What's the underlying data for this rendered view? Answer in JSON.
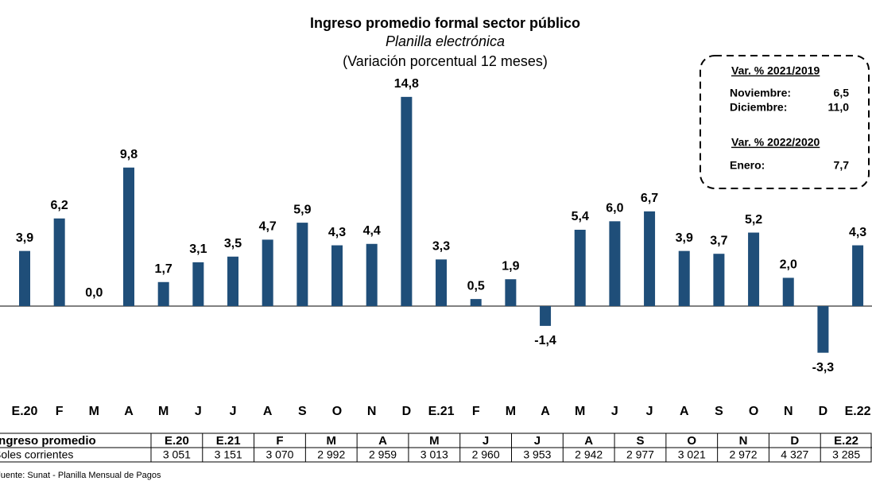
{
  "chart_data": {
    "type": "bar",
    "title": "Ingreso promedio formal sector público",
    "subtitle": "Planilla electrónica",
    "subtitle2": "(Variación porcentual 12 meses)",
    "color": "#1f4e79",
    "categories": [
      "E.20",
      "F",
      "M",
      "A",
      "M",
      "J",
      "J",
      "A",
      "S",
      "O",
      "N",
      "D",
      "E.21",
      "F",
      "M",
      "A",
      "M",
      "J",
      "J",
      "A",
      "S",
      "O",
      "N",
      "D",
      "E.22"
    ],
    "values": [
      3.9,
      6.2,
      0.0,
      9.8,
      1.7,
      3.1,
      3.5,
      4.7,
      5.9,
      4.3,
      4.4,
      14.8,
      3.3,
      0.5,
      1.9,
      -1.4,
      5.4,
      6.0,
      6.7,
      3.9,
      3.7,
      5.2,
      2.0,
      -3.3,
      4.3
    ],
    "value_labels": [
      "3,9",
      "6,2",
      "0,0",
      "9,8",
      "1,7",
      "3,1",
      "3,5",
      "4,7",
      "5,9",
      "4,3",
      "4,4",
      "14,8",
      "3,3",
      "0,5",
      "1,9",
      "-1,4",
      "5,4",
      "6,0",
      "6,7",
      "3,9",
      "3,7",
      "5,2",
      "2,0",
      "-3,3",
      "4,3"
    ]
  },
  "inset": {
    "heading1": "Var. % 2021/2019",
    "rows1": [
      [
        "Noviembre:",
        "6,5"
      ],
      [
        "Diciembre:",
        "11,0"
      ]
    ],
    "heading2": "Var. % 2022/2020",
    "rows2": [
      [
        "Enero:",
        "7,7"
      ]
    ]
  },
  "table": {
    "header": [
      "Ingreso promedio",
      "E.20",
      "E.21",
      "F",
      "M",
      "A",
      "M",
      "J",
      "J",
      "A",
      "S",
      "O",
      "N",
      "D",
      "E.22"
    ],
    "rows": [
      [
        "Soles corrientes",
        "3 051",
        "3 151",
        "3 070",
        "2 992",
        "2 959",
        "3 013",
        "2 960",
        "3 953",
        "2 942",
        "2 977",
        "3 021",
        "2 972",
        "4 327",
        "3 285"
      ]
    ]
  },
  "source": "Fuente: Sunat - Planilla Mensual de Pagos"
}
